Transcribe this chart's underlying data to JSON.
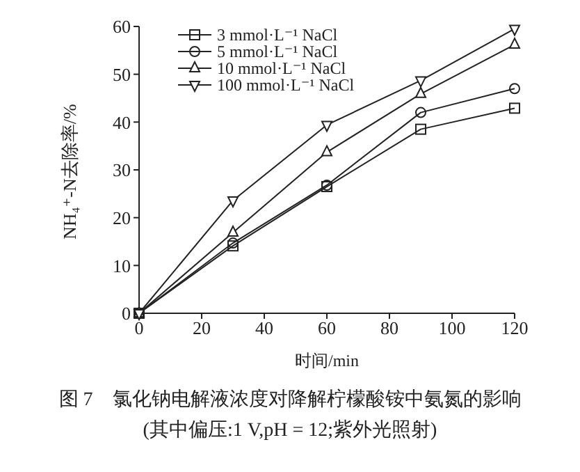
{
  "chart_data": {
    "type": "line",
    "title": "图 7　氯化钠电解液浓度对降解柠檬酸铵中氨氮的影响",
    "subtitle": "(其中偏压:1 V,pH = 12;紫外光照射)",
    "xlabel": "时间/min",
    "ylabel": "NH₄⁺-N去除率/%",
    "x": [
      0,
      30,
      60,
      90,
      120
    ],
    "xlim": [
      0,
      120
    ],
    "xticks": [
      0,
      20,
      40,
      60,
      80,
      100,
      120
    ],
    "ylim": [
      0,
      60
    ],
    "yticks": [
      0,
      10,
      20,
      30,
      40,
      50,
      60
    ],
    "grid": false,
    "legend": "top left",
    "line_style": "solid",
    "series": [
      {
        "name": "3 mmol·L⁻¹ NaCl",
        "color": "#222222",
        "marker": "square",
        "values": [
          0,
          14.1,
          26.5,
          38.5,
          42.9
        ]
      },
      {
        "name": "5 mmol·L⁻¹ NaCl",
        "color": "#222222",
        "marker": "circle",
        "values": [
          0,
          14.7,
          26.8,
          42,
          47
        ]
      },
      {
        "name": "10 mmol·L⁻¹ NaCl",
        "color": "#222222",
        "marker": "triangle",
        "values": [
          0,
          16.9,
          33.7,
          45.9,
          56.2
        ]
      },
      {
        "name": "100 mmol·L⁻¹ NaCl",
        "color": "#222222",
        "marker": "triangle_down",
        "values": [
          0,
          23.6,
          39.4,
          48.7,
          59.5
        ]
      }
    ]
  }
}
